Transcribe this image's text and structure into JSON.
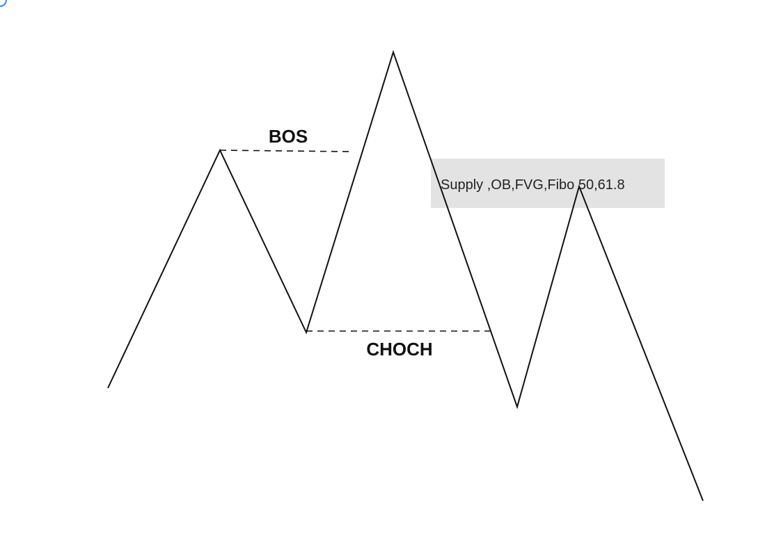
{
  "diagram": {
    "colors": {
      "price_line": "#111111",
      "dashed_level": "#111111",
      "zone_fill": "#e3e3e3",
      "text": "#111111",
      "corner_mark": "#3b82f6"
    },
    "levels": {
      "bos": {
        "label": "BOS"
      },
      "choch": {
        "label": "CHOCH"
      }
    },
    "zone": {
      "label": "Supply ,OB,FVG,Fibo 50,61.8"
    }
  }
}
